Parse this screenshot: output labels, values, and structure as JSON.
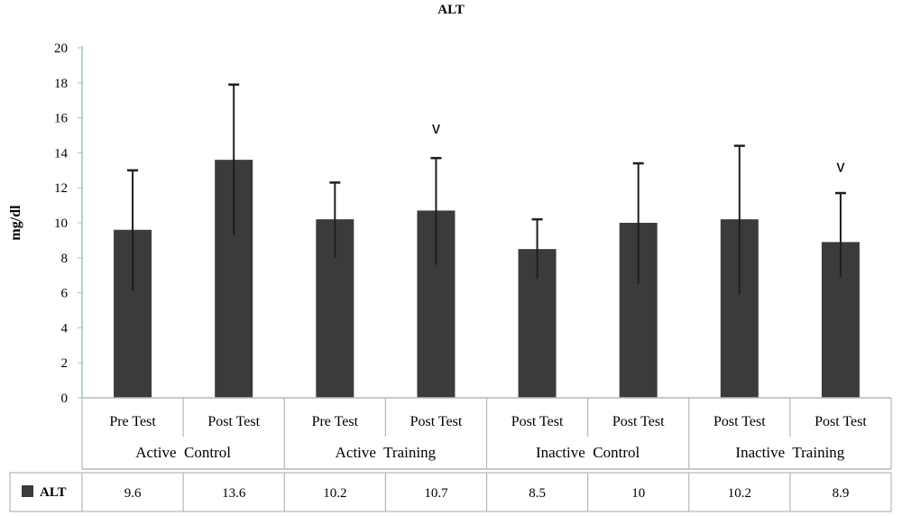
{
  "chart_data": {
    "type": "bar",
    "title": "ALT",
    "ylabel": "mg/dl",
    "ylim": [
      0,
      20
    ],
    "yticks": [
      "0",
      "2",
      "4",
      "6",
      "8",
      "10",
      "12",
      "14",
      "16",
      "18",
      "20"
    ],
    "groups": [
      "Active  Control",
      "Active  Training",
      "Inactive  Control",
      "Inactive  Training"
    ],
    "categories": [
      "Pre Test",
      "Post Test",
      "Pre Test",
      "Post Test",
      "Post Test",
      "Post Test",
      "Post Test",
      "Post Test"
    ],
    "series": [
      {
        "name": "ALT",
        "values": [
          9.6,
          13.6,
          10.2,
          10.7,
          8.5,
          10,
          10.2,
          8.9
        ],
        "value_labels": [
          "9.6",
          "13.6",
          "10.2",
          "10.7",
          "8.5",
          "10",
          "10.2",
          "8.9"
        ],
        "error_upper": [
          13.0,
          17.9,
          12.3,
          13.7,
          10.2,
          13.4,
          14.4,
          11.7
        ],
        "error_lower": [
          6.1,
          9.3,
          8.0,
          7.6,
          6.8,
          6.5,
          5.9,
          6.9
        ],
        "color": "#3b3b3b"
      }
    ],
    "annotations": [
      {
        "text": "v",
        "category_index": 3,
        "y": 15.1
      },
      {
        "text": "v",
        "category_index": 7,
        "y": 12.9
      }
    ],
    "legend": "data-table-left",
    "grid": false
  }
}
